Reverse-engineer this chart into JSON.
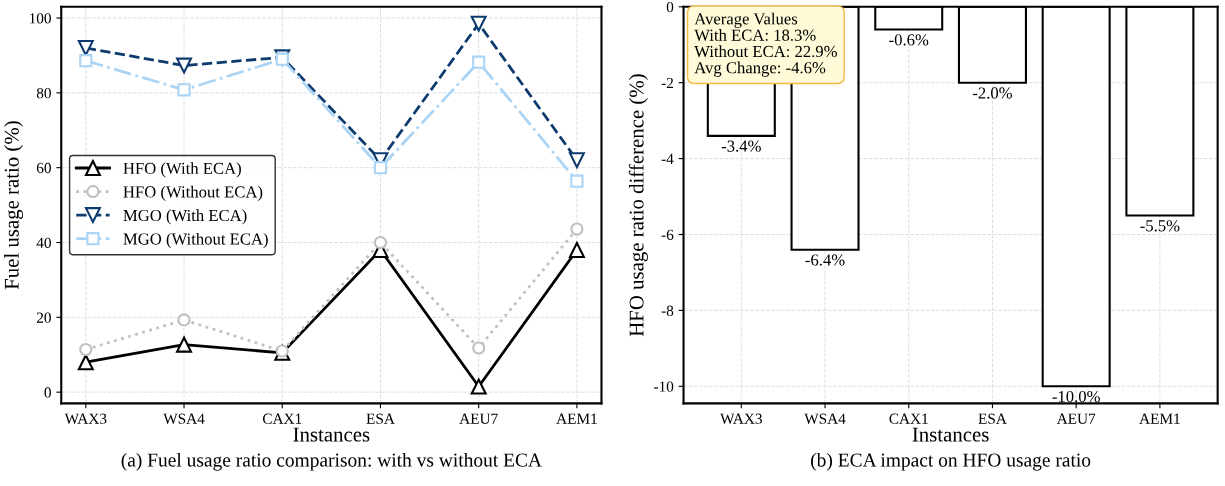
{
  "chart_data": [
    {
      "type": "line",
      "title": "(a) Fuel usage ratio comparison: with vs without ECA",
      "xlabel": "Instances",
      "ylabel": "Fuel usage ratio (%)",
      "categories": [
        "WAX3",
        "WSA4",
        "CAX1",
        "ESA",
        "AEU7",
        "AEM1"
      ],
      "series": [
        {
          "name": "HFO (With ECA)",
          "color": "#000000",
          "marker": "triangle",
          "line_style": "solid",
          "values": [
            8,
            12.7,
            10.5,
            38,
            1.5,
            38
          ]
        },
        {
          "name": "HFO (Without ECA)",
          "color": "#c0c0c0",
          "marker": "circle",
          "line_style": "dotted",
          "values": [
            11.4,
            19.3,
            11,
            40,
            11.8,
            43.6
          ]
        },
        {
          "name": "MGO (With ECA)",
          "color": "#0d3b6e",
          "marker": "triangle-down",
          "line_style": "dashed",
          "values": [
            92,
            87.3,
            89.5,
            62,
            98.5,
            62
          ]
        },
        {
          "name": "MGO (Without ECA)",
          "color": "#aad4f5",
          "marker": "square",
          "line_style": "dashdot",
          "values": [
            88.6,
            80.8,
            89,
            60,
            88.2,
            56.4
          ]
        }
      ],
      "ylim": [
        -3,
        103
      ],
      "yticks": [
        0,
        20,
        40,
        60,
        80,
        100
      ],
      "grid": true,
      "legend": "center left"
    },
    {
      "type": "bar",
      "title": "(b) ECA impact on HFO usage ratio",
      "xlabel": "Instances",
      "ylabel": "HFO usage ratio difference (%)",
      "categories": [
        "WAX3",
        "WSA4",
        "CAX1",
        "ESA",
        "AEU7",
        "AEM1"
      ],
      "values": [
        -3.4,
        -6.4,
        -0.6,
        -2.0,
        -10.0,
        -5.5
      ],
      "value_labels": [
        "-3.4%",
        "-6.4%",
        "-0.6%",
        "-2.0%",
        "-10.0%",
        "-5.5%"
      ],
      "color": "#ffffff",
      "ylim": [
        -10.45,
        0
      ],
      "yticks": [
        -10,
        -8,
        -6,
        -4,
        -2,
        0
      ],
      "grid": true,
      "annotations": [
        "Average Values\nWith ECA: 18.3%\nWithout ECA: 22.9%\nAvg Change: -4.6%"
      ]
    }
  ]
}
